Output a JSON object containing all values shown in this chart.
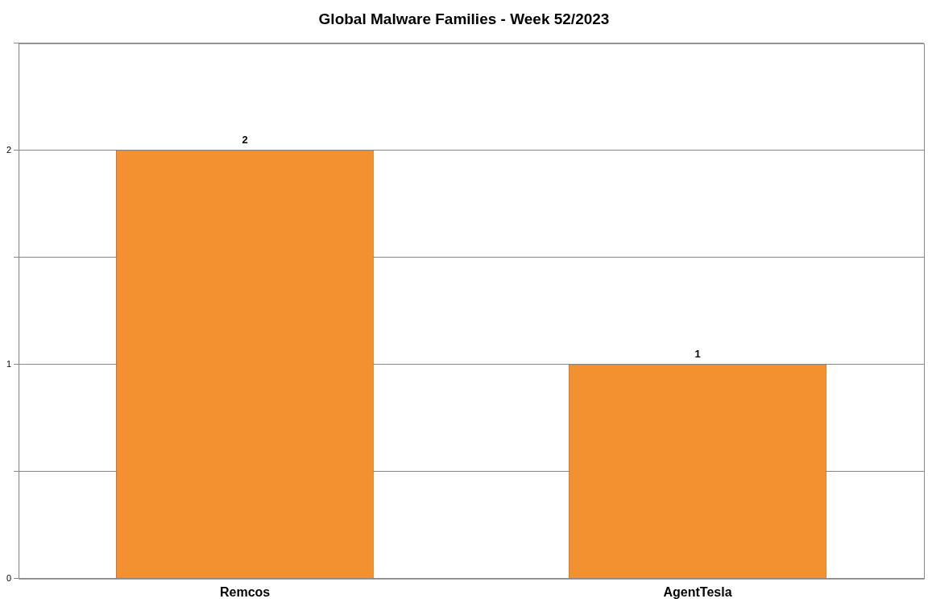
{
  "chart_data": {
    "type": "bar",
    "title": "Global Malware Families - Week 52/2023",
    "categories": [
      "Remcos",
      "AgentTesla"
    ],
    "values": [
      2,
      1
    ],
    "color": "#f39130",
    "ylim": [
      0,
      2.5
    ],
    "yticks": [
      0,
      {
        "value": 0.5,
        "label": null
      },
      1,
      {
        "value": 1.5,
        "label": null
      },
      2,
      {
        "value": 2.5,
        "label": null
      }
    ],
    "grid": "y",
    "data_labels": true,
    "legend": false
  }
}
